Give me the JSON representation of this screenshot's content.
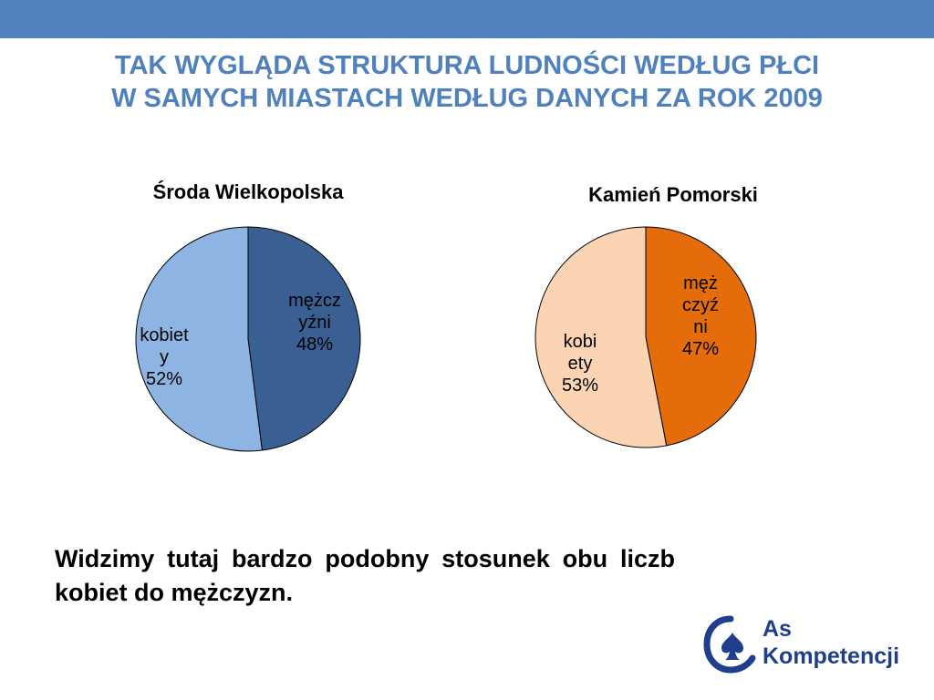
{
  "slide": {
    "title_line1": "Tak wygląda struktura ludności według płci",
    "title_line2": "w samych miastach według danych za rok 2009",
    "summary": "Widzimy tutaj bardzo podobny stosunek obu liczb kobiet do mężczyzn."
  },
  "colors": {
    "top_bar": "#4f81bd",
    "title": "#4f81bd",
    "logo": "#1f3f8c"
  },
  "logo": {
    "line1": "As",
    "line2": "Kompetencji",
    "icon": "spade-card-icon"
  },
  "chart_data": [
    {
      "type": "pie",
      "title": "Środa Wielkopolska",
      "slices": [
        {
          "label_lines": [
            "mężcz",
            "yźni",
            "48%"
          ],
          "value": 48,
          "color": "#3a5f93"
        },
        {
          "label_lines": [
            "kobiet",
            "y",
            "52%"
          ],
          "value": 52,
          "color": "#8eb4e3"
        }
      ]
    },
    {
      "type": "pie",
      "title": "Kamień Pomorski",
      "slices": [
        {
          "label_lines": [
            "męż",
            "czyź",
            "ni",
            "47%"
          ],
          "value": 47,
          "color": "#e46c0a"
        },
        {
          "label_lines": [
            "kobi",
            "ety",
            "53%"
          ],
          "value": 53,
          "color": "#fbd4b4"
        }
      ]
    }
  ]
}
